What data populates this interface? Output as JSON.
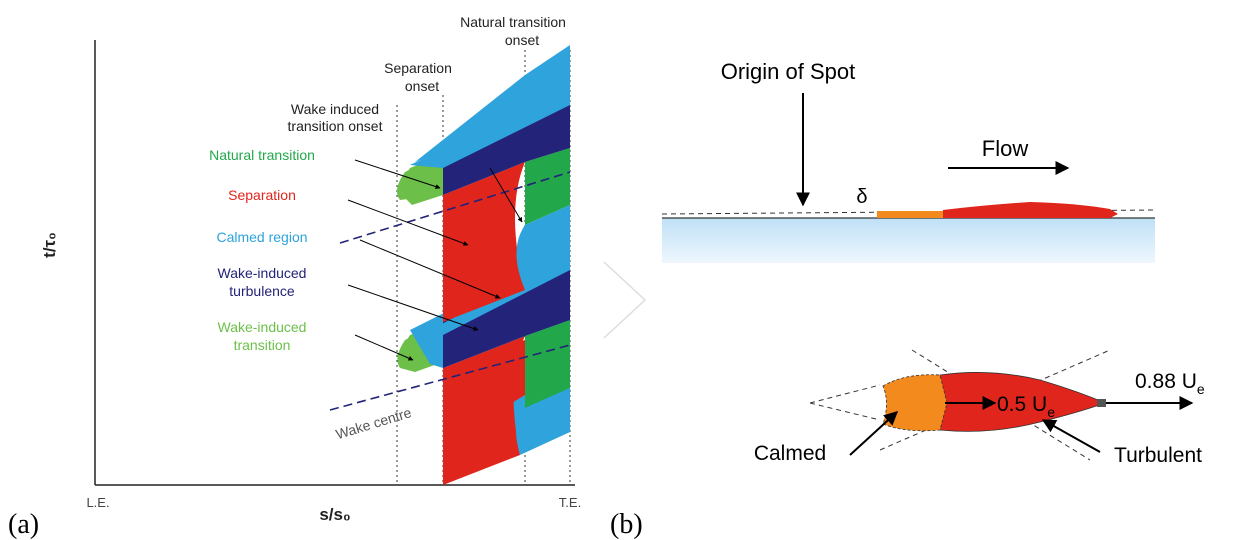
{
  "panel_a": {
    "letter": "(a)",
    "y_axis_label": "t/τ₀",
    "x_axis_label": "s/s₀",
    "le_label": "L.E.",
    "te_label": "T.E.",
    "onset_labels": {
      "natural_line1": "Natural transition",
      "natural_line2": "onset",
      "separation_line1": "Separation",
      "separation_line2": "onset",
      "wake_line1": "Wake induced",
      "wake_line2": "transition onset"
    },
    "legend": [
      {
        "line1": "Natural transition",
        "line2": "",
        "color": "#22a84a"
      },
      {
        "line1": "Separation",
        "line2": "",
        "color": "#e0261c"
      },
      {
        "line1": "Calmed region",
        "line2": "",
        "color": "#2ea3dc"
      },
      {
        "line1": "Wake-induced",
        "line2": "turbulence",
        "color": "#23237a"
      },
      {
        "line1": "Wake-induced",
        "line2": "transition",
        "color": "#6cc04a"
      }
    ],
    "wake_centre_label": "Wake centre"
  },
  "panel_b": {
    "letter": "(b)",
    "origin_label": "Origin of Spot",
    "flow_label": "Flow",
    "delta_label": "δ",
    "speed_mid": "0.5 U",
    "speed_mid_sub": "e",
    "speed_tip": "0.88 U",
    "speed_tip_sub": "e",
    "calmed_label": "Calmed",
    "turbulent_label": "Turbulent"
  },
  "colors": {
    "natural": "#22a84a",
    "separation": "#e0261c",
    "calmed": "#2ea3dc",
    "calmed_light": "#5ab8ea",
    "wake_turbulence": "#23237a",
    "wake_transition": "#6cc04a",
    "spot_calmed": "#f28a1e",
    "spot_turbulent": "#e0261c",
    "wall": "#cde6f7"
  }
}
